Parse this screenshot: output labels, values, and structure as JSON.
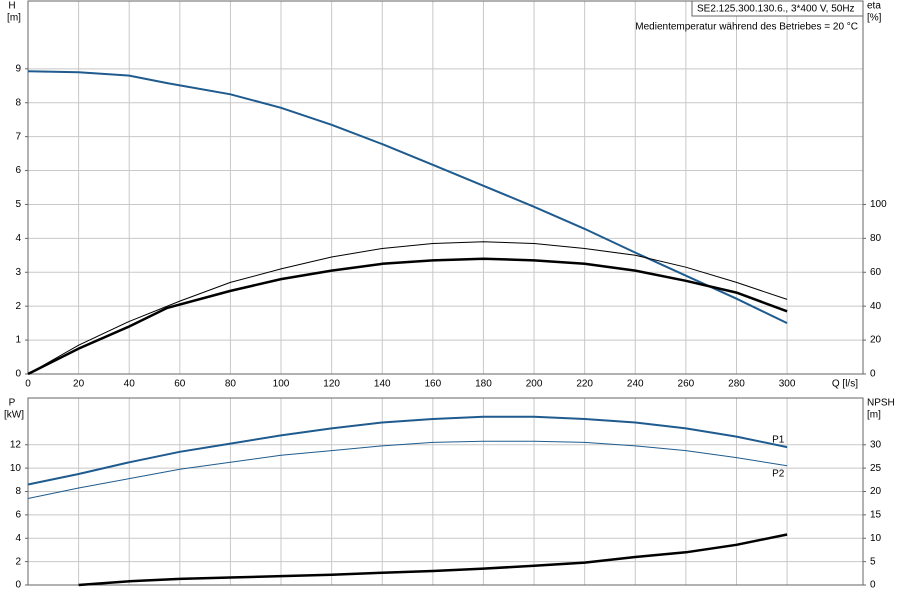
{
  "chart_data": [
    {
      "type": "line",
      "title": "SE2.125.300.130.6., 3*400 V, 50Hz",
      "subtitle": "Medientemperatur während des Betriebes = 20 °C",
      "y_label": "H",
      "y_unit": "[m]",
      "y2_label": "eta",
      "y2_unit": "[%]",
      "x_label": "Q [l/s]",
      "xlim": [
        0,
        330
      ],
      "xticks": [
        0,
        20,
        40,
        60,
        80,
        100,
        120,
        140,
        160,
        180,
        200,
        220,
        240,
        260,
        280,
        300
      ],
      "ylim": [
        0,
        11
      ],
      "yticks": [
        0,
        1,
        2,
        3,
        4,
        5,
        6,
        7,
        8,
        9
      ],
      "y2lim": [
        0,
        220
      ],
      "y2ticks": [
        0,
        20,
        40,
        60,
        80,
        100
      ],
      "grid": true,
      "xtick_labels": true,
      "series": [
        {
          "color": "#1f5b8e",
          "width": 2,
          "x": [
            0,
            20,
            40,
            55,
            80,
            100,
            120,
            140,
            160,
            180,
            200,
            220,
            240,
            260,
            280,
            300
          ],
          "values": [
            8.93,
            8.9,
            8.8,
            8.58,
            8.25,
            7.85,
            7.35,
            6.78,
            6.17,
            5.55,
            4.93,
            4.28,
            3.58,
            2.9,
            2.22,
            1.5
          ]
        },
        {
          "color": "#000000",
          "width": 1,
          "axis": "y2",
          "x": [
            0,
            20,
            40,
            60,
            80,
            100,
            120,
            140,
            160,
            180,
            200,
            220,
            240,
            260,
            280,
            300
          ],
          "values": [
            0,
            17,
            31,
            43,
            54,
            62,
            69,
            74,
            77,
            78,
            77,
            74,
            70,
            63,
            54,
            44
          ]
        },
        {
          "color": "#000000",
          "width": 2.5,
          "axis": "y2",
          "x": [
            0,
            20,
            40,
            55,
            80,
            100,
            120,
            140,
            160,
            180,
            200,
            220,
            240,
            260,
            280,
            300
          ],
          "values": [
            0,
            15,
            28,
            39,
            49,
            56,
            61,
            65,
            67,
            68,
            67,
            65,
            61,
            55,
            48,
            37
          ]
        }
      ]
    },
    {
      "type": "line",
      "y_label": "P",
      "y_unit": "[kW]",
      "y2_label": "NPSH",
      "y2_unit": "[m]",
      "xlim": [
        0,
        330
      ],
      "xticks": [
        0,
        20,
        40,
        60,
        80,
        100,
        120,
        140,
        160,
        180,
        200,
        220,
        240,
        260,
        280,
        300
      ],
      "ylim": [
        0,
        16
      ],
      "yticks": [
        0,
        2,
        4,
        6,
        8,
        10,
        12
      ],
      "y2lim": [
        0,
        40
      ],
      "y2ticks": [
        0,
        5,
        10,
        15,
        20,
        25,
        30
      ],
      "grid": true,
      "xtick_labels": false,
      "series": [
        {
          "name": "P1",
          "color": "#1f5b8e",
          "width": 2,
          "x": [
            0,
            20,
            40,
            60,
            80,
            100,
            120,
            140,
            160,
            180,
            200,
            220,
            240,
            260,
            280,
            300
          ],
          "values": [
            8.6,
            9.5,
            10.5,
            11.4,
            12.1,
            12.8,
            13.4,
            13.9,
            14.2,
            14.4,
            14.4,
            14.2,
            13.9,
            13.4,
            12.7,
            11.8
          ]
        },
        {
          "name": "P2",
          "color": "#1f5b8e",
          "width": 1,
          "x": [
            0,
            20,
            40,
            60,
            80,
            100,
            120,
            140,
            160,
            180,
            200,
            220,
            240,
            260,
            280,
            300
          ],
          "values": [
            7.4,
            8.3,
            9.1,
            9.9,
            10.5,
            11.1,
            11.5,
            11.9,
            12.2,
            12.3,
            12.3,
            12.2,
            11.9,
            11.5,
            10.9,
            10.2
          ]
        },
        {
          "color": "#000000",
          "width": 2.5,
          "axis": "y2",
          "x": [
            20,
            40,
            60,
            80,
            100,
            120,
            140,
            160,
            180,
            200,
            220,
            240,
            260,
            280,
            300
          ],
          "values": [
            0,
            0.8,
            1.3,
            1.6,
            1.9,
            2.2,
            2.6,
            3.0,
            3.5,
            4.1,
            4.8,
            6.0,
            7.0,
            8.6,
            10.8
          ]
        }
      ]
    }
  ]
}
